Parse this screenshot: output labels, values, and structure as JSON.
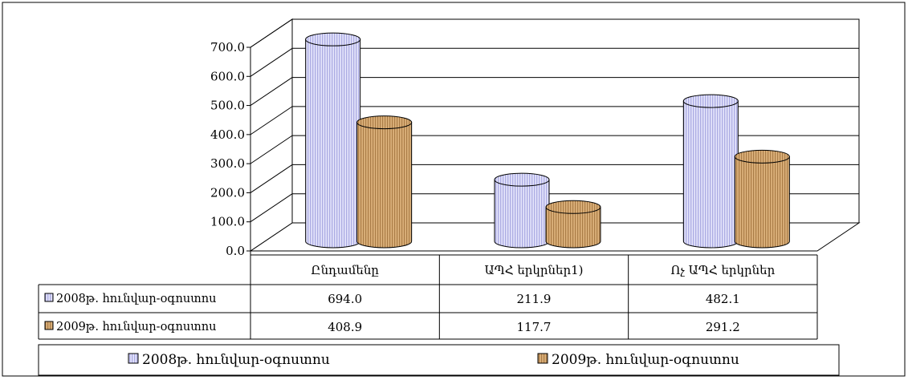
{
  "chart_data": {
    "type": "bar",
    "title": "",
    "xlabel": "",
    "ylabel": "",
    "ylim": [
      0,
      700
    ],
    "ytick_step": 100,
    "ytick_labels": [
      "0.0",
      "100.0",
      "200.0",
      "300.0",
      "400.0",
      "500.0",
      "600.0",
      "700.0"
    ],
    "categories": [
      "Ընդամենը",
      "ԱՊՀ երկրներ1)",
      "Ոչ ԱՊՀ երկրներ"
    ],
    "series": [
      {
        "name": "2008թ. հունվար-օգոստոս",
        "values": [
          694.0,
          211.9,
          482.1
        ],
        "labels": [
          "694.0",
          "211.9",
          "482.1"
        ],
        "color": "#a9a9e6"
      },
      {
        "name": "2009թ. հունվար-օգոստոս",
        "values": [
          408.9,
          117.7,
          291.2
        ],
        "labels": [
          "408.9",
          "117.7",
          "291.2"
        ],
        "color": "#b8864a"
      }
    ],
    "grid": true,
    "legend": "bottom",
    "data_table": true,
    "style": "3d-cylinder"
  }
}
